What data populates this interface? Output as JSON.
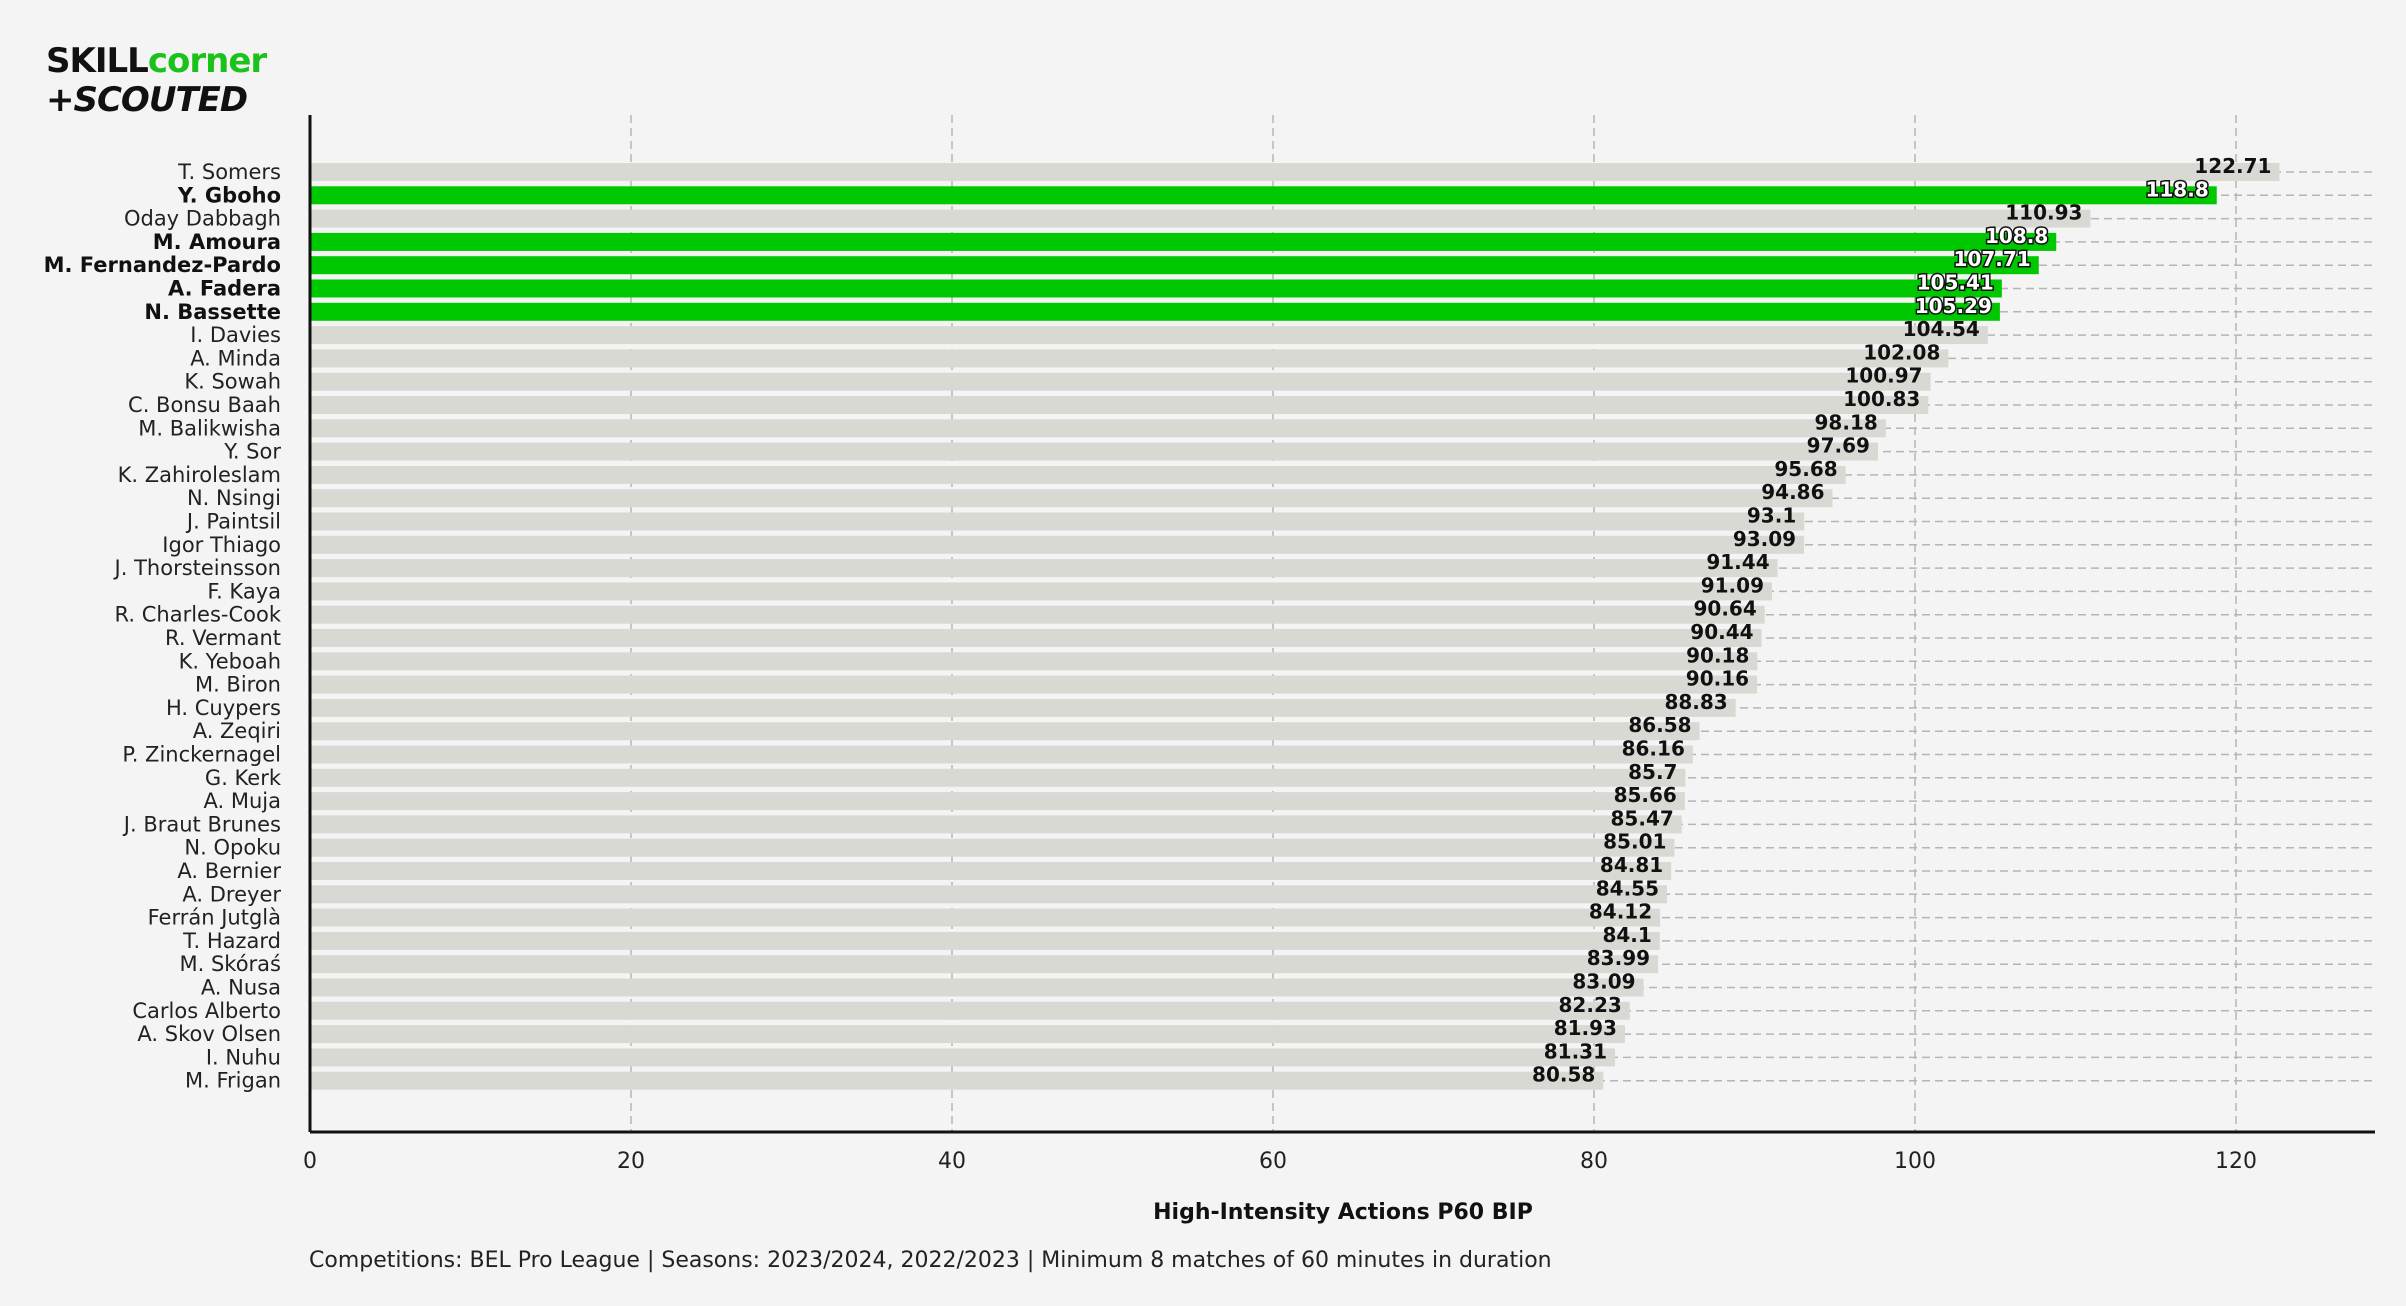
{
  "logo": {
    "brand_part1": "SKILL",
    "brand_part2": "corner",
    "brand_line2": "+SCOUTED",
    "colors": {
      "dark": "#111111",
      "green": "#1cc21c"
    }
  },
  "footnote": "Competitions: BEL Pro League | Seasons: 2023/2024, 2022/2023 | Minimum 8 matches of 60 minutes in duration",
  "chart_data": {
    "type": "bar",
    "orientation": "horizontal",
    "xlabel": "High-Intensity Actions P60 BIP",
    "xlim": [
      0,
      130
    ],
    "xticks": [
      0,
      20,
      40,
      60,
      80,
      100,
      120
    ],
    "grid": true,
    "colors": {
      "default": "#d9d9d4",
      "highlight": "#00c800"
    },
    "categories": [
      "T. Somers",
      "Y. Gboho",
      "Oday Dabbagh",
      "M. Amoura",
      "M. Fernandez-Pardo",
      "A. Fadera",
      "N. Bassette",
      "I. Davies",
      "A. Minda",
      "K. Sowah",
      "C. Bonsu Baah",
      "M. Balikwisha",
      "Y. Sor",
      "K. Zahiroleslam",
      "N. Nsingi",
      "J. Paintsil",
      "Igor Thiago",
      "J. Thorsteinsson",
      "F. Kaya",
      "R. Charles-Cook",
      "R. Vermant",
      "K. Yeboah",
      "M. Biron",
      "H. Cuypers",
      "A. Zeqiri",
      "P. Zinckernagel",
      "G. Kerk",
      "A. Muja",
      "J. Braut Brunes",
      "N. Opoku",
      "A. Bernier",
      "A. Dreyer",
      "Ferrán Jutglà",
      "T. Hazard",
      "M. Skóraś",
      "A. Nusa",
      "Carlos Alberto",
      "A. Skov Olsen",
      "I. Nuhu",
      "M. Frigan"
    ],
    "values": [
      122.71,
      118.8,
      110.93,
      108.8,
      107.71,
      105.41,
      105.29,
      104.54,
      102.08,
      100.97,
      100.83,
      98.18,
      97.69,
      95.68,
      94.86,
      93.1,
      93.09,
      91.44,
      91.09,
      90.64,
      90.44,
      90.18,
      90.16,
      88.83,
      86.58,
      86.16,
      85.7,
      85.66,
      85.47,
      85.01,
      84.81,
      84.55,
      84.12,
      84.1,
      83.99,
      83.09,
      82.23,
      81.93,
      81.31,
      80.58
    ],
    "value_labels": [
      "122.71",
      "118.8",
      "110.93",
      "108.8",
      "107.71",
      "105.41",
      "105.29",
      "104.54",
      "102.08",
      "100.97",
      "100.83",
      "98.18",
      "97.69",
      "95.68",
      "94.86",
      "93.1",
      "93.09",
      "91.44",
      "91.09",
      "90.64",
      "90.44",
      "90.18",
      "90.16",
      "88.83",
      "86.58",
      "86.16",
      "85.7",
      "85.66",
      "85.47",
      "85.01",
      "84.81",
      "84.55",
      "84.12",
      "84.1",
      "83.99",
      "83.09",
      "82.23",
      "81.93",
      "81.31",
      "80.58"
    ],
    "highlighted": [
      "Y. Gboho",
      "M. Amoura",
      "M. Fernandez-Pardo",
      "A. Fadera",
      "N. Bassette"
    ]
  }
}
